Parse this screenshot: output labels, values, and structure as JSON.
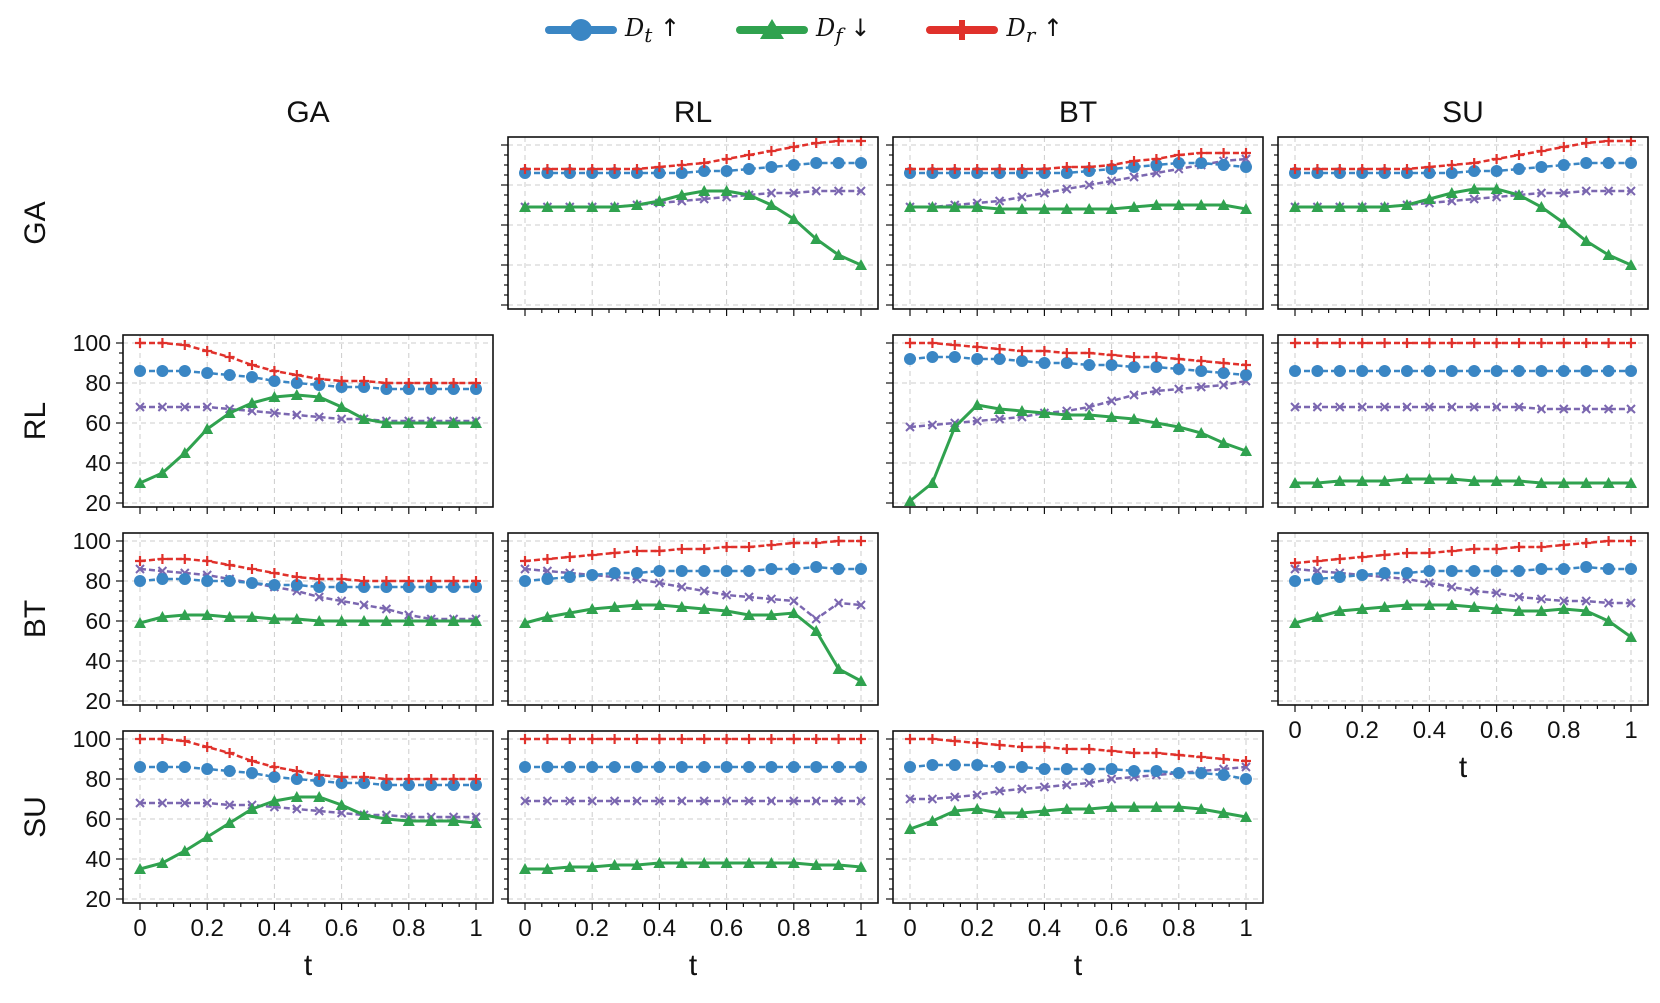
{
  "legend": [
    {
      "id": "dt",
      "base": "D",
      "sub": "t",
      "arrow": "↑",
      "color": "#3a86c4",
      "marker": "circle"
    },
    {
      "id": "df",
      "base": "D",
      "sub": "f",
      "arrow": "↓",
      "color": "#30a24f",
      "marker": "triangle"
    },
    {
      "id": "dr",
      "base": "D",
      "sub": "r",
      "arrow": "↑",
      "color": "#e0312b",
      "marker": "plus"
    }
  ],
  "extra_series_color": "#7b67b0",
  "chart_data": {
    "type": "line",
    "column_titles": [
      "GA",
      "RL",
      "BT",
      "SU"
    ],
    "row_titles": [
      "GA",
      "RL",
      "BT",
      "SU"
    ],
    "xlabel": "t",
    "x": [
      0,
      0.0667,
      0.1333,
      0.2,
      0.2667,
      0.3333,
      0.4,
      0.4667,
      0.5333,
      0.6,
      0.6667,
      0.7333,
      0.8,
      0.8667,
      0.9333,
      1.0
    ],
    "xticks": [
      "0",
      "0.2",
      "0.4",
      "0.6",
      "0.8",
      "1"
    ],
    "ylim": [
      20,
      100
    ],
    "yticks": [
      "20",
      "40",
      "60",
      "80",
      "100"
    ],
    "grid": true,
    "legend_position": "top-center",
    "panels": [
      {
        "row": 0,
        "col": 1,
        "series": {
          "dt": [
            86,
            86,
            86,
            86,
            86,
            86,
            86,
            86,
            87,
            87,
            88,
            89,
            90,
            91,
            91,
            91
          ],
          "df": [
            69,
            69,
            69,
            69,
            69,
            70,
            72,
            75,
            77,
            77,
            75,
            70,
            63,
            53,
            45,
            40
          ],
          "dr": [
            88,
            88,
            88,
            88,
            88,
            88,
            89,
            90,
            91,
            93,
            95,
            97,
            99,
            101,
            102,
            102
          ],
          "extra": [
            69,
            69,
            69,
            69,
            69,
            70,
            71,
            72,
            73,
            74,
            75,
            76,
            76,
            77,
            77,
            77
          ]
        }
      },
      {
        "row": 0,
        "col": 2,
        "series": {
          "dt": [
            86,
            86,
            86,
            86,
            86,
            86,
            86,
            86,
            87,
            88,
            89,
            90,
            91,
            91,
            90,
            89
          ],
          "df": [
            69,
            69,
            69,
            69,
            68,
            68,
            68,
            68,
            68,
            68,
            69,
            70,
            70,
            70,
            70,
            68
          ],
          "dr": [
            88,
            88,
            88,
            88,
            88,
            88,
            88,
            89,
            89,
            90,
            92,
            93,
            95,
            96,
            96,
            96
          ],
          "extra": [
            69,
            69,
            70,
            71,
            72,
            74,
            76,
            78,
            80,
            82,
            84,
            86,
            88,
            90,
            92,
            93
          ]
        }
      },
      {
        "row": 0,
        "col": 3,
        "series": {
          "dt": [
            86,
            86,
            86,
            86,
            86,
            86,
            86,
            86,
            87,
            87,
            88,
            89,
            90,
            91,
            91,
            91
          ],
          "df": [
            69,
            69,
            69,
            69,
            69,
            70,
            73,
            76,
            78,
            78,
            75,
            69,
            61,
            52,
            45,
            40
          ],
          "dr": [
            88,
            88,
            88,
            88,
            88,
            88,
            89,
            90,
            91,
            93,
            95,
            97,
            99,
            101,
            102,
            102
          ],
          "extra": [
            69,
            69,
            69,
            69,
            69,
            70,
            71,
            72,
            73,
            74,
            75,
            76,
            76,
            77,
            77,
            77
          ]
        }
      },
      {
        "row": 1,
        "col": 0,
        "series": {
          "dt": [
            86,
            86,
            86,
            85,
            84,
            83,
            81,
            80,
            79,
            78,
            78,
            77,
            77,
            77,
            77,
            77
          ],
          "df": [
            30,
            35,
            45,
            57,
            65,
            70,
            73,
            74,
            73,
            68,
            62,
            60,
            60,
            60,
            60,
            60
          ],
          "dr": [
            100,
            100,
            99,
            96,
            93,
            89,
            86,
            84,
            82,
            81,
            81,
            80,
            80,
            80,
            80,
            80
          ],
          "extra": [
            68,
            68,
            68,
            68,
            67,
            66,
            65,
            64,
            63,
            62,
            62,
            61,
            61,
            61,
            61,
            61
          ]
        }
      },
      {
        "row": 1,
        "col": 2,
        "series": {
          "dt": [
            92,
            93,
            93,
            92,
            92,
            91,
            90,
            90,
            89,
            89,
            88,
            88,
            87,
            86,
            85,
            84
          ],
          "df": [
            21,
            30,
            58,
            69,
            67,
            66,
            65,
            64,
            64,
            63,
            62,
            60,
            58,
            55,
            50,
            46
          ],
          "dr": [
            100,
            100,
            99,
            98,
            97,
            96,
            96,
            95,
            95,
            94,
            93,
            93,
            92,
            91,
            90,
            89
          ],
          "extra": [
            58,
            59,
            60,
            61,
            62,
            63,
            65,
            66,
            68,
            71,
            74,
            76,
            77,
            78,
            79,
            81
          ]
        }
      },
      {
        "row": 1,
        "col": 3,
        "series": {
          "dt": [
            86,
            86,
            86,
            86,
            86,
            86,
            86,
            86,
            86,
            86,
            86,
            86,
            86,
            86,
            86,
            86
          ],
          "df": [
            30,
            30,
            31,
            31,
            31,
            32,
            32,
            32,
            31,
            31,
            31,
            30,
            30,
            30,
            30,
            30
          ],
          "dr": [
            100,
            100,
            100,
            100,
            100,
            100,
            100,
            100,
            100,
            100,
            100,
            100,
            100,
            100,
            100,
            100
          ],
          "extra": [
            68,
            68,
            68,
            68,
            68,
            68,
            68,
            68,
            68,
            68,
            68,
            67,
            67,
            67,
            67,
            67
          ]
        }
      },
      {
        "row": 2,
        "col": 0,
        "series": {
          "dt": [
            80,
            81,
            81,
            80,
            80,
            79,
            78,
            78,
            77,
            77,
            77,
            77,
            77,
            77,
            77,
            77
          ],
          "df": [
            59,
            62,
            63,
            63,
            62,
            62,
            61,
            61,
            60,
            60,
            60,
            60,
            60,
            60,
            60,
            60
          ],
          "dr": [
            90,
            91,
            91,
            90,
            88,
            86,
            84,
            82,
            81,
            81,
            80,
            80,
            80,
            80,
            80,
            80
          ],
          "extra": [
            86,
            85,
            84,
            83,
            81,
            79,
            77,
            75,
            72,
            70,
            68,
            66,
            63,
            61,
            61,
            61
          ]
        }
      },
      {
        "row": 2,
        "col": 1,
        "series": {
          "dt": [
            80,
            81,
            82,
            83,
            84,
            84,
            85,
            85,
            85,
            85,
            85,
            86,
            86,
            87,
            86,
            86
          ],
          "df": [
            59,
            62,
            64,
            66,
            67,
            68,
            68,
            67,
            66,
            65,
            63,
            63,
            64,
            55,
            36,
            30
          ],
          "dr": [
            90,
            91,
            92,
            93,
            94,
            95,
            95,
            96,
            96,
            97,
            97,
            98,
            99,
            99,
            100,
            100
          ],
          "extra": [
            86,
            85,
            84,
            83,
            82,
            81,
            79,
            77,
            75,
            73,
            72,
            71,
            70,
            61,
            69,
            68
          ]
        }
      },
      {
        "row": 2,
        "col": 3,
        "series": {
          "dt": [
            80,
            81,
            82,
            83,
            84,
            84,
            85,
            85,
            85,
            85,
            85,
            86,
            86,
            87,
            86,
            86
          ],
          "df": [
            59,
            62,
            65,
            66,
            67,
            68,
            68,
            68,
            67,
            66,
            65,
            65,
            66,
            65,
            60,
            52
          ],
          "dr": [
            89,
            90,
            91,
            92,
            93,
            94,
            94,
            95,
            96,
            96,
            97,
            97,
            98,
            99,
            100,
            100
          ],
          "extra": [
            86,
            85,
            84,
            83,
            82,
            81,
            79,
            77,
            75,
            74,
            72,
            71,
            70,
            70,
            69,
            69
          ]
        }
      },
      {
        "row": 3,
        "col": 0,
        "series": {
          "dt": [
            86,
            86,
            86,
            85,
            84,
            83,
            81,
            80,
            79,
            78,
            78,
            77,
            77,
            77,
            77,
            77
          ],
          "df": [
            35,
            38,
            44,
            51,
            58,
            65,
            69,
            71,
            71,
            67,
            62,
            60,
            59,
            59,
            59,
            58
          ],
          "dr": [
            100,
            100,
            99,
            96,
            93,
            89,
            86,
            84,
            82,
            81,
            81,
            80,
            80,
            80,
            80,
            80
          ],
          "extra": [
            68,
            68,
            68,
            68,
            67,
            67,
            66,
            65,
            64,
            63,
            62,
            62,
            61,
            61,
            61,
            61
          ]
        }
      },
      {
        "row": 3,
        "col": 1,
        "series": {
          "dt": [
            86,
            86,
            86,
            86,
            86,
            86,
            86,
            86,
            86,
            86,
            86,
            86,
            86,
            86,
            86,
            86
          ],
          "df": [
            35,
            35,
            36,
            36,
            37,
            37,
            38,
            38,
            38,
            38,
            38,
            38,
            38,
            37,
            37,
            36
          ],
          "dr": [
            100,
            100,
            100,
            100,
            100,
            100,
            100,
            100,
            100,
            100,
            100,
            100,
            100,
            100,
            100,
            100
          ],
          "extra": [
            69,
            69,
            69,
            69,
            69,
            69,
            69,
            69,
            69,
            69,
            69,
            69,
            69,
            69,
            69,
            69
          ]
        }
      },
      {
        "row": 3,
        "col": 2,
        "series": {
          "dt": [
            86,
            87,
            87,
            87,
            86,
            86,
            85,
            85,
            85,
            85,
            84,
            84,
            83,
            83,
            82,
            80
          ],
          "df": [
            55,
            59,
            64,
            65,
            63,
            63,
            64,
            65,
            65,
            66,
            66,
            66,
            66,
            65,
            63,
            61
          ],
          "dr": [
            100,
            100,
            99,
            98,
            97,
            96,
            96,
            95,
            95,
            94,
            93,
            93,
            92,
            91,
            90,
            89
          ],
          "extra": [
            70,
            70,
            71,
            72,
            74,
            75,
            76,
            77,
            78,
            80,
            81,
            82,
            83,
            84,
            85,
            86
          ]
        }
      }
    ]
  }
}
